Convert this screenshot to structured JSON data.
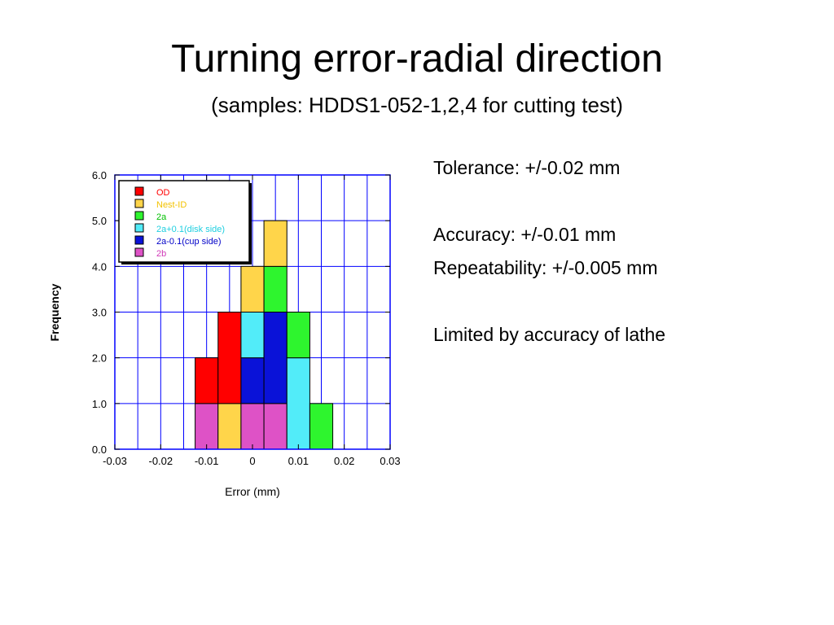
{
  "slide": {
    "title": "Turning error-radial direction",
    "subtitle": "(samples: HDDS1-052-1,2,4 for cutting test)",
    "notes": [
      "Tolerance: +/-0.02 mm",
      "",
      "Accuracy: +/-0.01 mm",
      "Repeatability: +/-0.005 mm",
      "",
      "Limited by accuracy of lathe"
    ]
  },
  "chart_data": {
    "type": "bar",
    "subtype": "stacked-histogram",
    "xlabel": "Error (mm)",
    "ylabel": "Frequency",
    "xlim": [
      -0.03,
      0.03
    ],
    "ylim": [
      0,
      6
    ],
    "x_ticks": [
      "-0.03",
      "-0.02",
      "-0.01",
      "0",
      "0.01",
      "0.02",
      "0.03"
    ],
    "y_ticks": [
      "0.0",
      "1.0",
      "2.0",
      "3.0",
      "4.0",
      "5.0",
      "6.0"
    ],
    "bin_width": 0.005,
    "grid": true,
    "legend_position": "top-left",
    "series": [
      {
        "name": "OD",
        "color": "#ff0000",
        "label_color": "#ff0000"
      },
      {
        "name": "Nest-ID",
        "color": "#ffd54a",
        "label_color": "#f3c200"
      },
      {
        "name": "2a",
        "color": "#2ef52e",
        "label_color": "#00c000"
      },
      {
        "name": "2a+0.1(disk side)",
        "color": "#52ecf9",
        "label_color": "#1fcfe0"
      },
      {
        "name": "2a-0.1(cup side)",
        "color": "#0a12d8",
        "label_color": "#0000c8"
      },
      {
        "name": "2b",
        "color": "#de52c6",
        "label_color": "#d03ab8"
      }
    ],
    "bars": [
      {
        "x_start": -0.0125,
        "stack": [
          {
            "series": "2b",
            "count": 1
          },
          {
            "series": "OD",
            "count": 1
          }
        ]
      },
      {
        "x_start": -0.0075,
        "stack": [
          {
            "series": "Nest-ID",
            "count": 1
          },
          {
            "series": "OD",
            "count": 2
          }
        ]
      },
      {
        "x_start": -0.0025,
        "stack": [
          {
            "series": "2b",
            "count": 1
          },
          {
            "series": "2a-0.1(cup side)",
            "count": 1
          },
          {
            "series": "2a+0.1(disk side)",
            "count": 1
          },
          {
            "series": "Nest-ID",
            "count": 1
          }
        ]
      },
      {
        "x_start": 0.0025,
        "stack": [
          {
            "series": "2b",
            "count": 1
          },
          {
            "series": "2a-0.1(cup side)",
            "count": 2
          },
          {
            "series": "2a",
            "count": 1
          },
          {
            "series": "Nest-ID",
            "count": 1
          }
        ]
      },
      {
        "x_start": 0.0075,
        "stack": [
          {
            "series": "2a+0.1(disk side)",
            "count": 2
          },
          {
            "series": "2a",
            "count": 1
          }
        ]
      },
      {
        "x_start": 0.0125,
        "stack": [
          {
            "series": "2a",
            "count": 1
          }
        ]
      }
    ]
  }
}
